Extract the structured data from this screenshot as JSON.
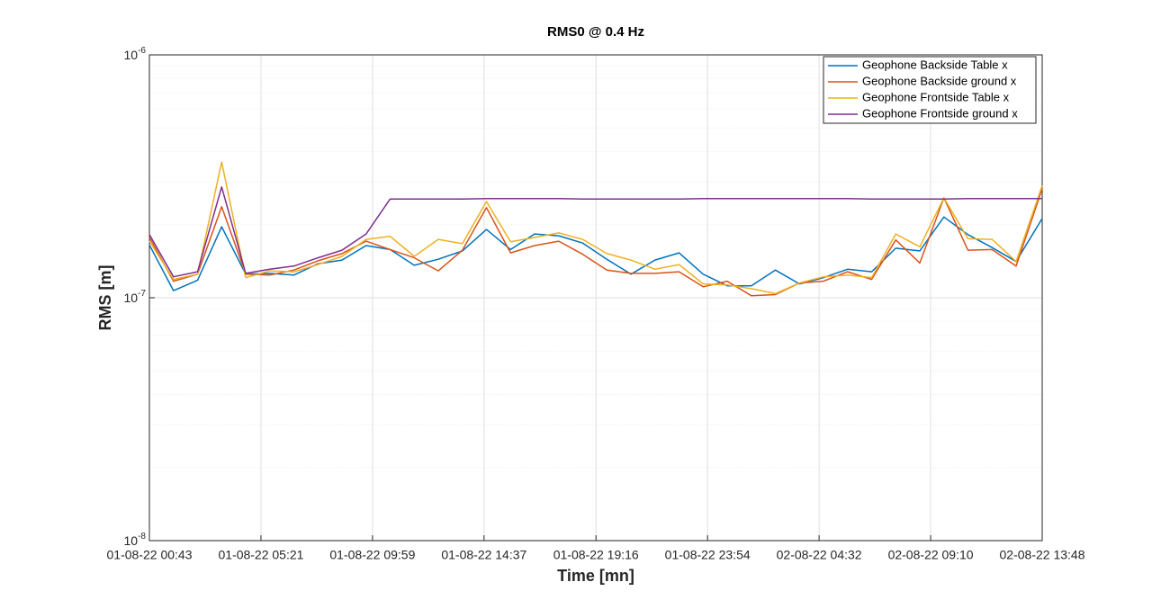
{
  "chart_data": {
    "type": "line",
    "title": "RMS0 @ 0.4 Hz",
    "x_label": "Time [mn]",
    "y_label": "RMS [m]",
    "log_y": true,
    "grid": true,
    "minor_grid": true,
    "legend": "northeast",
    "xlim": [
      "01-08-22 00:43",
      "02-08-22 13:48"
    ],
    "xticks": [
      "01-08-22 00:43",
      "01-08-22 05:21",
      "01-08-22 09:59",
      "01-08-22 14:37",
      "01-08-22 19:16",
      "01-08-22 23:54",
      "02-08-22 04:32",
      "02-08-22 09:10",
      "02-08-22 13:48"
    ],
    "ylim": [
      1e-08,
      1e-06
    ],
    "yticks": [
      {
        "value": 1e-08,
        "label": "10",
        "exponent": "-8"
      },
      {
        "value": 1e-07,
        "label": "10",
        "exponent": "-7"
      },
      {
        "value": 1e-06,
        "label": "10",
        "exponent": "-6"
      }
    ],
    "x": [
      "01-08-22 00:43",
      "01-08-22 01:43",
      "01-08-22 02:43",
      "01-08-22 03:43",
      "01-08-22 04:43",
      "01-08-22 05:43",
      "01-08-22 06:43",
      "01-08-22 07:43",
      "01-08-22 08:43",
      "01-08-22 09:43",
      "01-08-22 10:43",
      "01-08-22 11:43",
      "01-08-22 12:43",
      "01-08-22 13:43",
      "01-08-22 14:43",
      "01-08-22 15:43",
      "01-08-22 16:43",
      "01-08-22 17:43",
      "01-08-22 18:43",
      "01-08-22 19:43",
      "01-08-22 20:43",
      "01-08-22 21:43",
      "01-08-22 22:43",
      "01-08-22 23:43",
      "02-08-22 00:43",
      "02-08-22 01:43",
      "02-08-22 02:43",
      "02-08-22 03:43",
      "02-08-22 04:43",
      "02-08-22 05:43",
      "02-08-22 06:43",
      "02-08-22 07:43",
      "02-08-22 08:43",
      "02-08-22 09:43",
      "02-08-22 10:43",
      "02-08-22 11:43",
      "02-08-22 12:43",
      "02-08-22 13:48"
    ],
    "series": [
      {
        "name": "Geophone Backside Table x",
        "color": "#0072BD",
        "values": [
          1.65e-07,
          1.07e-07,
          1.18e-07,
          1.96e-07,
          1.25e-07,
          1.26e-07,
          1.24e-07,
          1.38e-07,
          1.43e-07,
          1.64e-07,
          1.58e-07,
          1.36e-07,
          1.44e-07,
          1.56e-07,
          1.91e-07,
          1.58e-07,
          1.83e-07,
          1.8e-07,
          1.68e-07,
          1.44e-07,
          1.25e-07,
          1.43e-07,
          1.53e-07,
          1.25e-07,
          1.12e-07,
          1.12e-07,
          1.3e-07,
          1.14e-07,
          1.21e-07,
          1.31e-07,
          1.28e-07,
          1.6e-07,
          1.56e-07,
          2.15e-07,
          1.82e-07,
          1.61e-07,
          1.41e-07,
          2.12e-07
        ]
      },
      {
        "name": "Geophone Backside ground x",
        "color": "#D95319",
        "values": [
          1.77e-07,
          1.17e-07,
          1.25e-07,
          2.37e-07,
          1.25e-07,
          1.24e-07,
          1.3e-07,
          1.42e-07,
          1.52e-07,
          1.71e-07,
          1.58e-07,
          1.46e-07,
          1.29e-07,
          1.57e-07,
          2.35e-07,
          1.53e-07,
          1.64e-07,
          1.71e-07,
          1.51e-07,
          1.3e-07,
          1.26e-07,
          1.26e-07,
          1.28e-07,
          1.11e-07,
          1.17e-07,
          1.02e-07,
          1.03e-07,
          1.15e-07,
          1.17e-07,
          1.28e-07,
          1.19e-07,
          1.73e-07,
          1.39e-07,
          2.58e-07,
          1.57e-07,
          1.58e-07,
          1.35e-07,
          2.81e-07
        ]
      },
      {
        "name": "Geophone Frontside Table x",
        "color": "#EDB120",
        "values": [
          1.71e-07,
          1.19e-07,
          1.25e-07,
          3.62e-07,
          1.21e-07,
          1.29e-07,
          1.28e-07,
          1.37e-07,
          1.48e-07,
          1.74e-07,
          1.79e-07,
          1.48e-07,
          1.74e-07,
          1.67e-07,
          2.49e-07,
          1.7e-07,
          1.77e-07,
          1.85e-07,
          1.74e-07,
          1.52e-07,
          1.43e-07,
          1.31e-07,
          1.37e-07,
          1.14e-07,
          1.13e-07,
          1.09e-07,
          1.04e-07,
          1.15e-07,
          1.22e-07,
          1.24e-07,
          1.21e-07,
          1.83e-07,
          1.62e-07,
          2.58e-07,
          1.75e-07,
          1.74e-07,
          1.41e-07,
          2.9e-07
        ]
      },
      {
        "name": "Geophone Frontside ground x",
        "color": "#7E2F8E",
        "values": [
          1.82e-07,
          1.22e-07,
          1.28e-07,
          2.86e-07,
          1.26e-07,
          1.31e-07,
          1.35e-07,
          1.46e-07,
          1.57e-07,
          1.83e-07,
          2.55e-07,
          2.55e-07,
          2.55e-07,
          2.55e-07,
          2.56e-07,
          2.56e-07,
          2.56e-07,
          2.56e-07,
          2.55e-07,
          2.55e-07,
          2.55e-07,
          2.55e-07,
          2.55e-07,
          2.56e-07,
          2.56e-07,
          2.56e-07,
          2.56e-07,
          2.56e-07,
          2.56e-07,
          2.56e-07,
          2.55e-07,
          2.55e-07,
          2.55e-07,
          2.55e-07,
          2.56e-07,
          2.56e-07,
          2.56e-07,
          2.56e-07
        ]
      }
    ]
  }
}
